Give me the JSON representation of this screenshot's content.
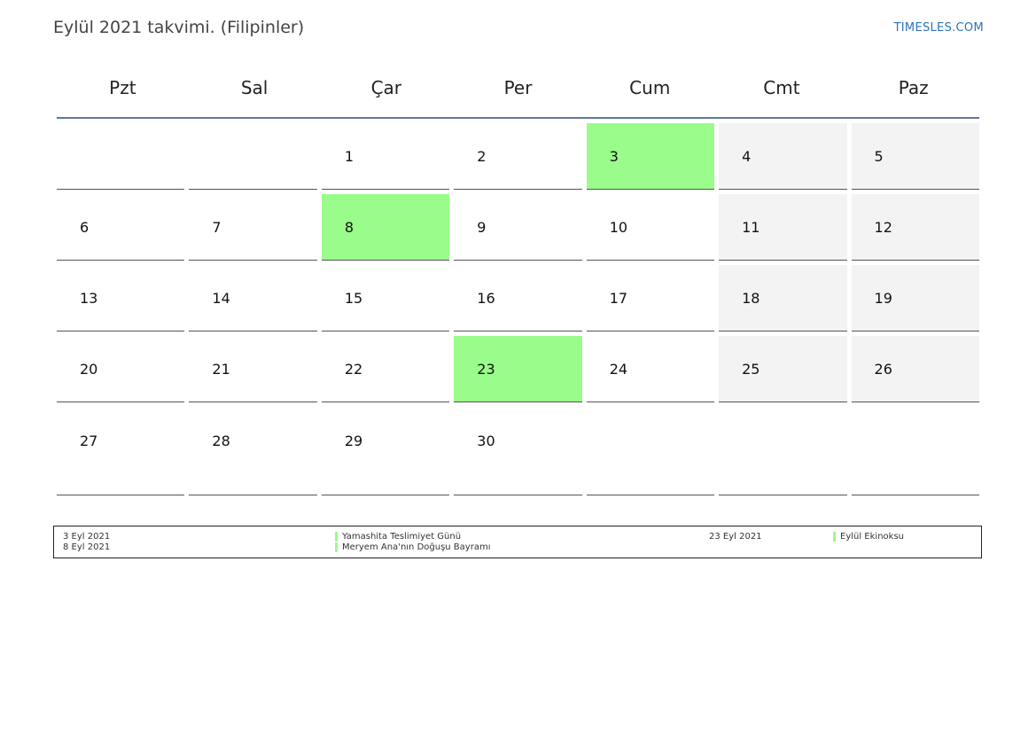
{
  "page": {
    "title": "Eylül 2021 takvimi. (Filipinler)",
    "brand": "TIMESLES.COM"
  },
  "weekdays": [
    "Pzt",
    "Sal",
    "Çar",
    "Per",
    "Cum",
    "Cmt",
    "Paz"
  ],
  "weeks": [
    [
      "",
      "",
      "1",
      "2",
      "3",
      "4",
      "5"
    ],
    [
      "6",
      "7",
      "8",
      "9",
      "10",
      "11",
      "12"
    ],
    [
      "13",
      "14",
      "15",
      "16",
      "17",
      "18",
      "19"
    ],
    [
      "20",
      "21",
      "22",
      "23",
      "24",
      "25",
      "26"
    ],
    [
      "27",
      "28",
      "29",
      "30",
      "",
      "",
      ""
    ]
  ],
  "holidays": [
    "3",
    "8",
    "23"
  ],
  "colors": {
    "holiday": "#9afc8a",
    "weekend": "#f3f3f3",
    "header_rule": "#5c7a9c",
    "brand": "#2a73b8"
  },
  "legend": {
    "items": [
      {
        "date": "3 Eyl 2021",
        "name": "Yamashita Teslimiyet Günü"
      },
      {
        "date": "8 Eyl 2021",
        "name": "Meryem Ana'nın Doğuşu Bayramı"
      },
      {
        "date": "23 Eyl 2021",
        "name": "Eylül Ekinoksu"
      }
    ]
  }
}
